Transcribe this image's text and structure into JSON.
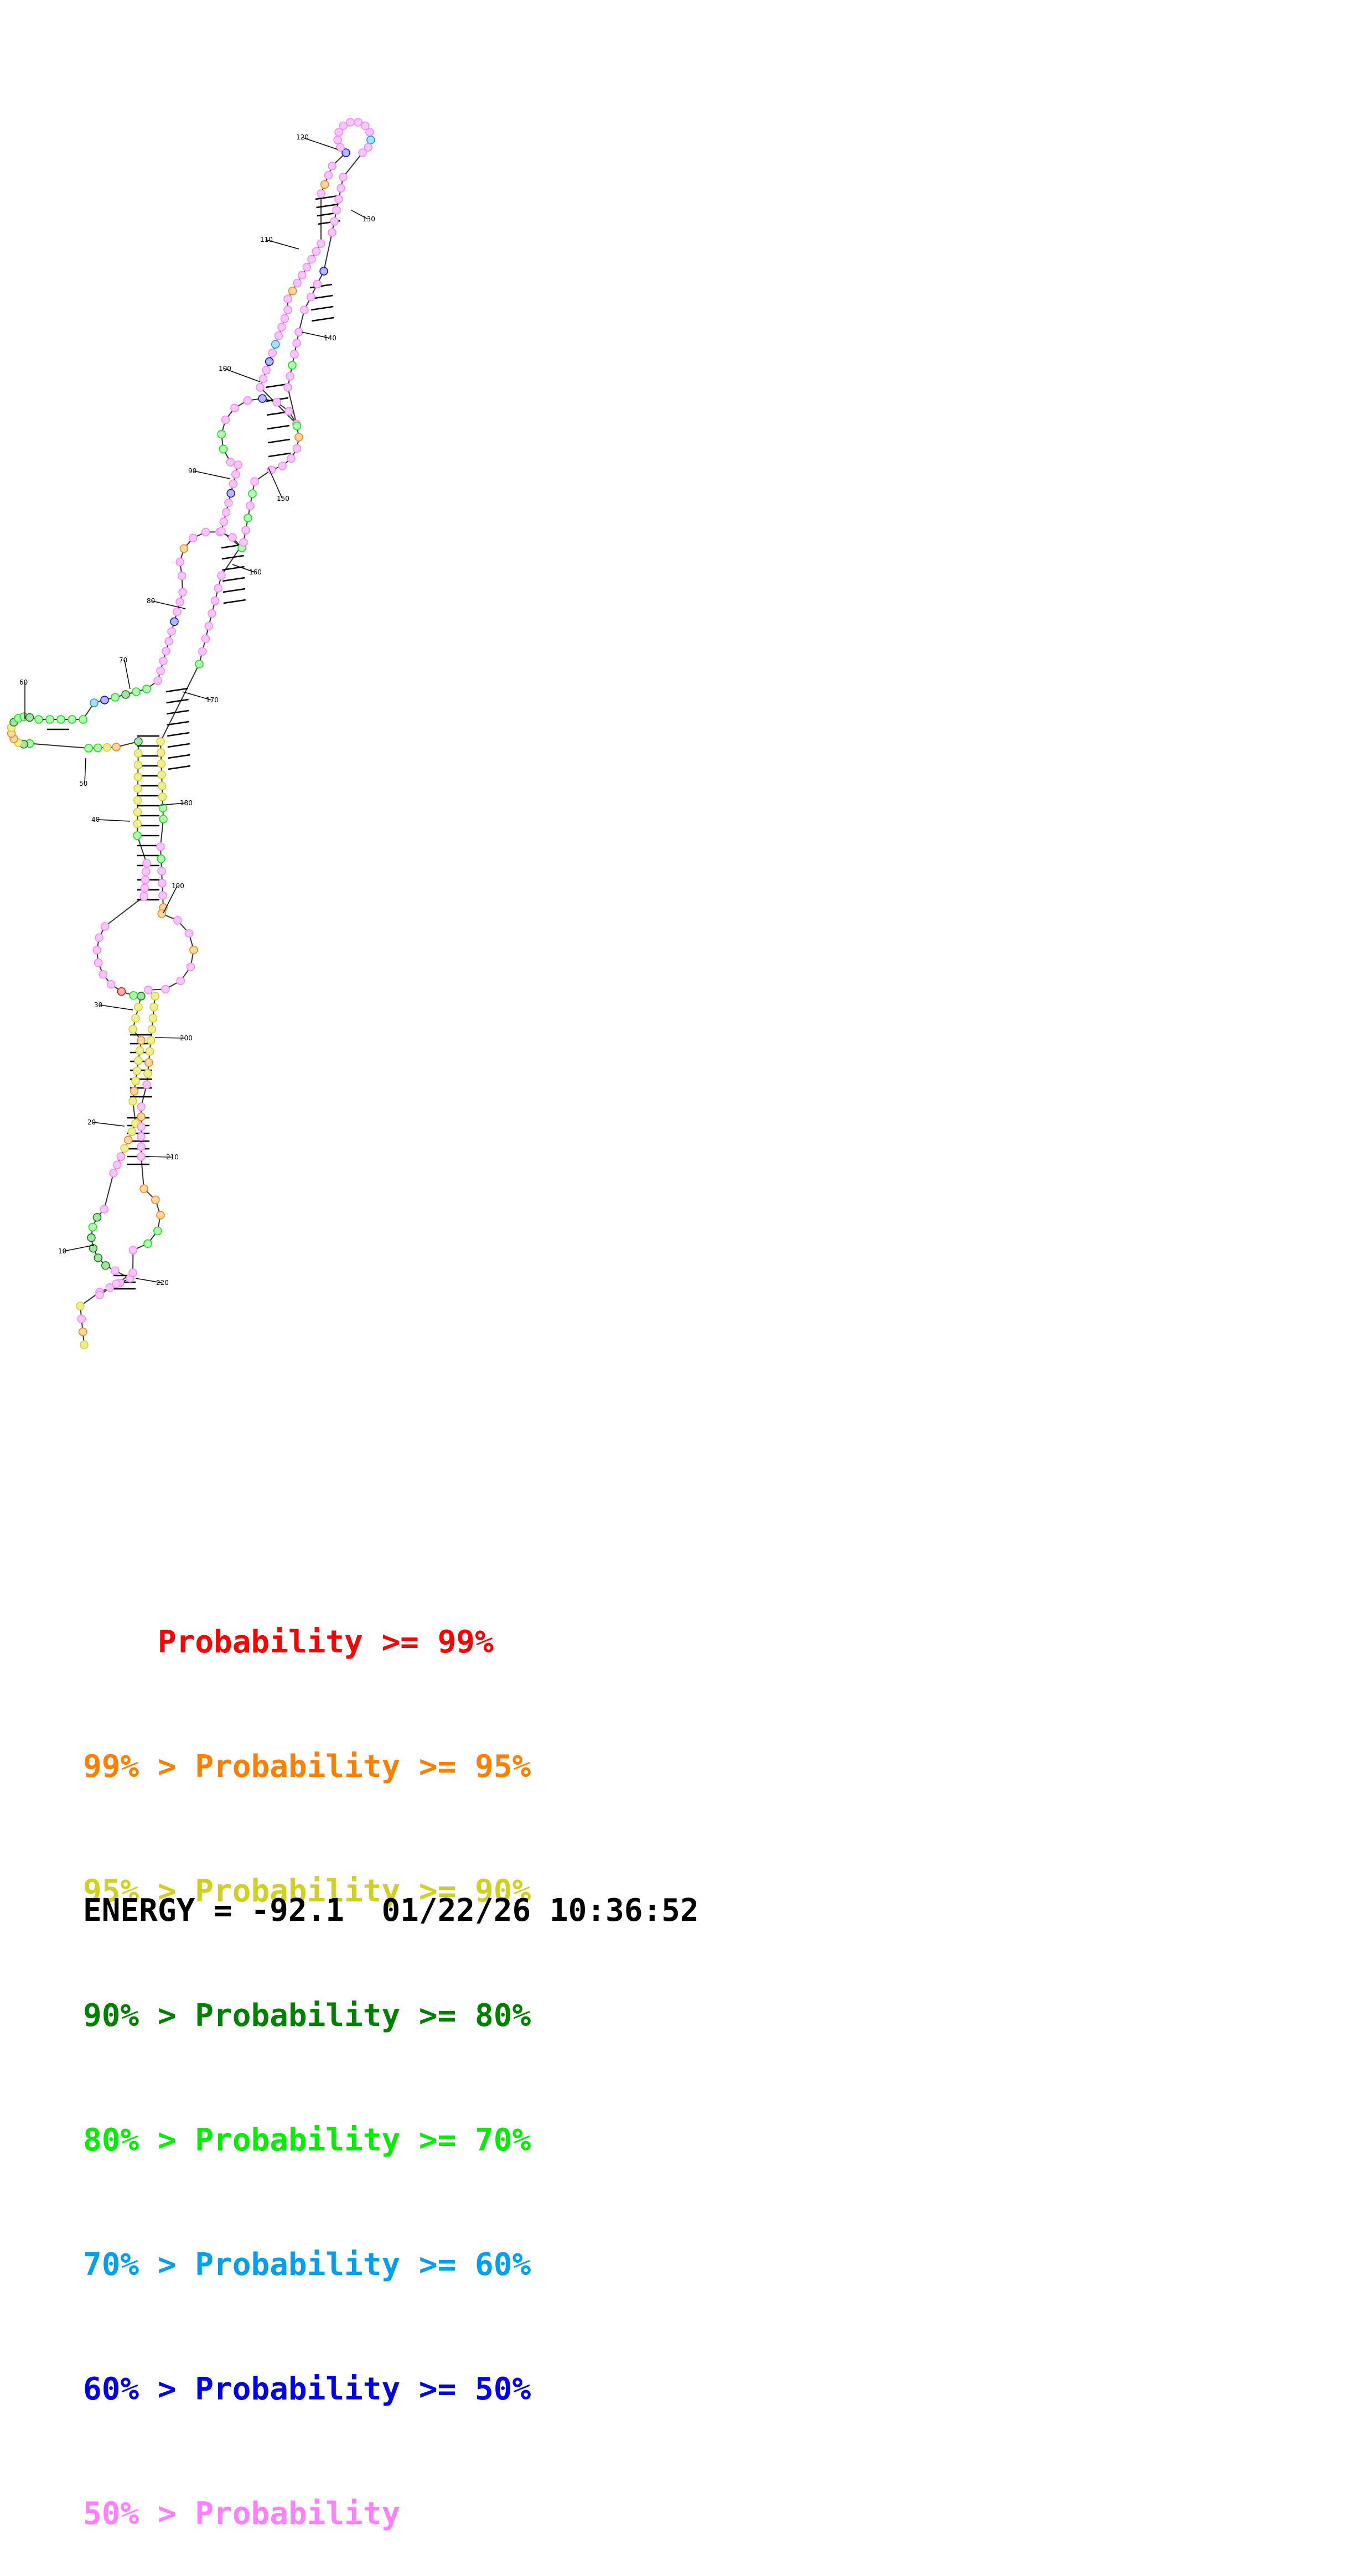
{
  "legend": [
    {
      "prefix": "    ",
      "text": "Probability >= 99%",
      "color": "#ff0000"
    },
    {
      "prefix": "99% > ",
      "text": "Probability >= 95%",
      "color": "#ff8000"
    },
    {
      "prefix": "95% > ",
      "text": "Probability >= 90%",
      "color": "#d0d020"
    },
    {
      "prefix": "90% > ",
      "text": "Probability >= 80%",
      "color": "#008000"
    },
    {
      "prefix": "80% > ",
      "text": "Probability >= 70%",
      "color": "#00ee00"
    },
    {
      "prefix": "70% > ",
      "text": "Probability >= 60%",
      "color": "#00a0ee"
    },
    {
      "prefix": "60% > ",
      "text": "Probability >= 50%",
      "color": "#0000ee"
    },
    {
      "prefix": "50% > ",
      "text": "Probability",
      "color": "#ff80ff"
    }
  ],
  "energy_line": "ENERGY = -92.1  01/22/26 10:36:52",
  "position_labels": [
    "10",
    "20",
    "30",
    "40",
    "50",
    "60",
    "70",
    "80",
    "90",
    "100",
    "110",
    "120",
    "130",
    "140",
    "150",
    "160",
    "170",
    "180",
    "190",
    "200",
    "210",
    "220"
  ]
}
